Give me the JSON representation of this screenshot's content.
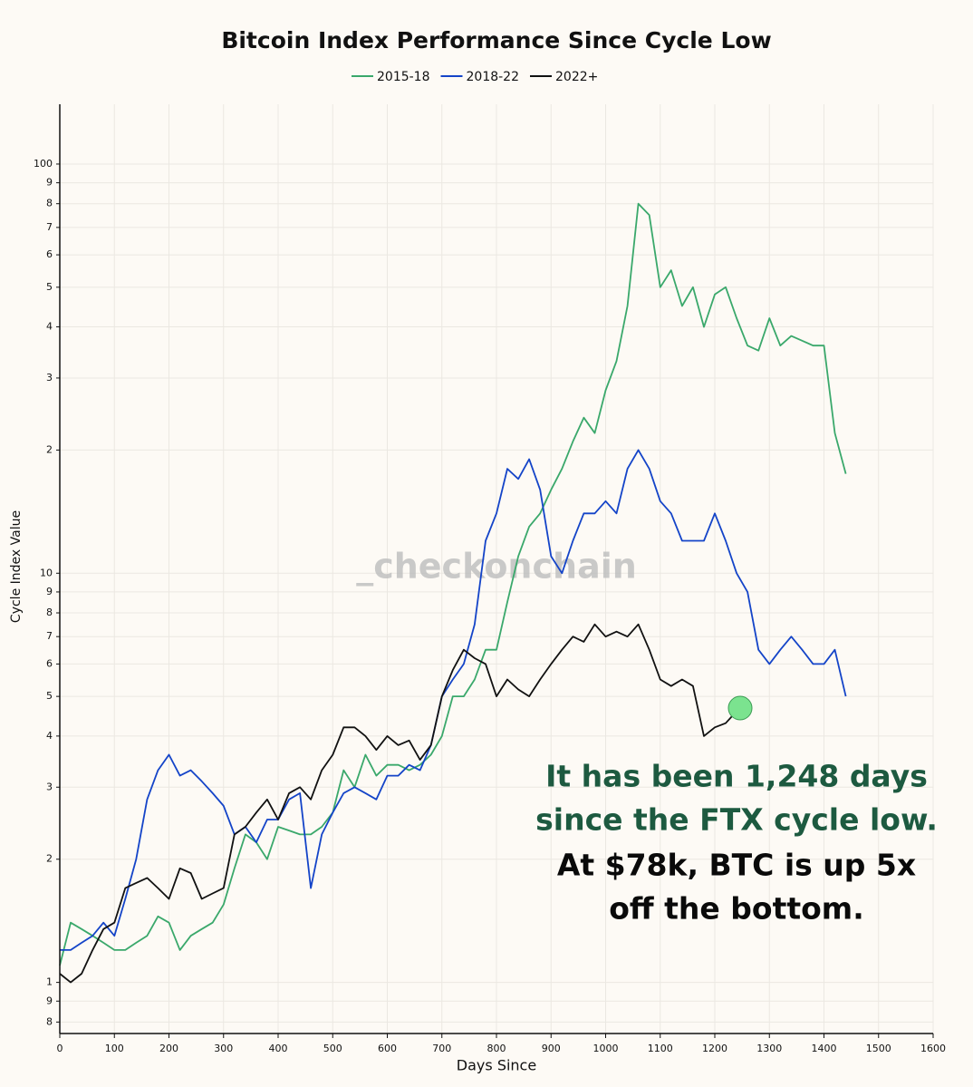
{
  "chart_data": {
    "type": "line",
    "title": "Bitcoin Index Performance Since Cycle Low",
    "x_label": "Days Since",
    "y_label": "Cycle Index Value",
    "log_y": true,
    "grid": true,
    "watermark": "_checkonchain",
    "annotations": [
      "It has been 1,248 days",
      "since the FTX cycle low.",
      "At $78k, BTC is up 5x",
      "off the bottom."
    ],
    "x": [
      0,
      20,
      40,
      60,
      80,
      100,
      120,
      140,
      160,
      180,
      200,
      220,
      240,
      260,
      280,
      300,
      320,
      340,
      360,
      380,
      400,
      420,
      440,
      460,
      480,
      500,
      520,
      540,
      560,
      580,
      600,
      620,
      640,
      660,
      680,
      700,
      720,
      740,
      760,
      780,
      800,
      820,
      840,
      860,
      880,
      900,
      920,
      940,
      960,
      980,
      1000,
      1020,
      1040,
      1060,
      1080,
      1100,
      1120,
      1140,
      1160,
      1180,
      1200,
      1220,
      1240,
      1260,
      1280,
      1300,
      1320,
      1340,
      1360,
      1380,
      1400,
      1420,
      1440
    ],
    "series": [
      {
        "name": "2015-18",
        "color": "#3aa86b",
        "values": [
          1.1,
          1.4,
          1.35,
          1.3,
          1.25,
          1.2,
          1.2,
          1.25,
          1.3,
          1.45,
          1.4,
          1.2,
          1.3,
          1.35,
          1.4,
          1.55,
          1.9,
          2.3,
          2.2,
          2.0,
          2.4,
          2.35,
          2.3,
          2.3,
          2.4,
          2.6,
          3.3,
          3.0,
          3.6,
          3.2,
          3.4,
          3.4,
          3.3,
          3.4,
          3.6,
          4.0,
          5.0,
          5.0,
          5.5,
          6.5,
          6.5,
          8.5,
          11,
          13,
          14,
          16,
          18,
          21,
          24,
          22,
          28,
          33,
          45,
          80,
          75,
          50,
          55,
          45,
          50,
          40,
          48,
          50,
          42,
          36,
          35,
          42,
          36,
          38,
          37,
          36,
          36,
          22,
          17.5
        ]
      },
      {
        "name": "2018-22",
        "color": "#1444c8",
        "values": [
          1.2,
          1.2,
          1.25,
          1.3,
          1.4,
          1.3,
          1.6,
          2.0,
          2.8,
          3.3,
          3.6,
          3.2,
          3.3,
          3.1,
          2.9,
          2.7,
          2.3,
          2.4,
          2.2,
          2.5,
          2.5,
          2.8,
          2.9,
          1.7,
          2.3,
          2.6,
          2.9,
          3.0,
          2.9,
          2.8,
          3.2,
          3.2,
          3.4,
          3.3,
          3.8,
          5.0,
          5.5,
          6.0,
          7.5,
          12,
          14,
          18,
          17,
          19,
          16,
          11,
          10,
          12,
          14,
          14,
          15,
          14,
          18,
          20,
          18,
          15,
          14,
          12,
          12,
          12,
          14,
          12,
          10,
          9,
          6.5,
          6,
          6.5,
          7,
          6.5,
          6,
          6,
          6.5,
          5
        ]
      },
      {
        "name": "2022+",
        "color": "#111111",
        "values": [
          1.05,
          1.0,
          1.05,
          1.2,
          1.35,
          1.4,
          1.7,
          1.75,
          1.8,
          1.7,
          1.6,
          1.9,
          1.85,
          1.6,
          1.65,
          1.7,
          2.3,
          2.4,
          2.6,
          2.8,
          2.5,
          2.9,
          3.0,
          2.8,
          3.3,
          3.6,
          4.2,
          4.2,
          4.0,
          3.7,
          4.0,
          3.8,
          3.9,
          3.5,
          3.8,
          5.0,
          5.8,
          6.5,
          6.2,
          6.0,
          5.0,
          5.5,
          5.2,
          5.0,
          5.5,
          6.0,
          6.5,
          7.0,
          6.8,
          7.5,
          7.0,
          7.2,
          7.0,
          7.5,
          6.5,
          5.5,
          5.3,
          5.5,
          5.3,
          4.0,
          4.2,
          4.3,
          4.6,
          null,
          null,
          null,
          null,
          null,
          null,
          null,
          null,
          null,
          null
        ]
      }
    ],
    "xlim": [
      0,
      1600
    ],
    "xticks": [
      0,
      100,
      200,
      300,
      400,
      500,
      600,
      700,
      800,
      900,
      1000,
      1100,
      1200,
      1300,
      1400,
      1500,
      1600
    ],
    "ylim": [
      0.75,
      140
    ],
    "yticks": [
      {
        "value": 0.8,
        "label": "8"
      },
      {
        "value": 0.9,
        "label": "9"
      },
      1,
      2,
      3,
      4,
      5,
      6,
      7,
      8,
      9,
      10,
      {
        "value": 20,
        "label": "2"
      },
      {
        "value": 30,
        "label": "3"
      },
      {
        "value": 40,
        "label": "4"
      },
      {
        "value": 50,
        "label": "5"
      },
      {
        "value": 60,
        "label": "6"
      },
      {
        "value": 70,
        "label": "7"
      },
      {
        "value": 80,
        "label": "8"
      },
      {
        "value": 90,
        "label": "9"
      },
      100
    ]
  }
}
